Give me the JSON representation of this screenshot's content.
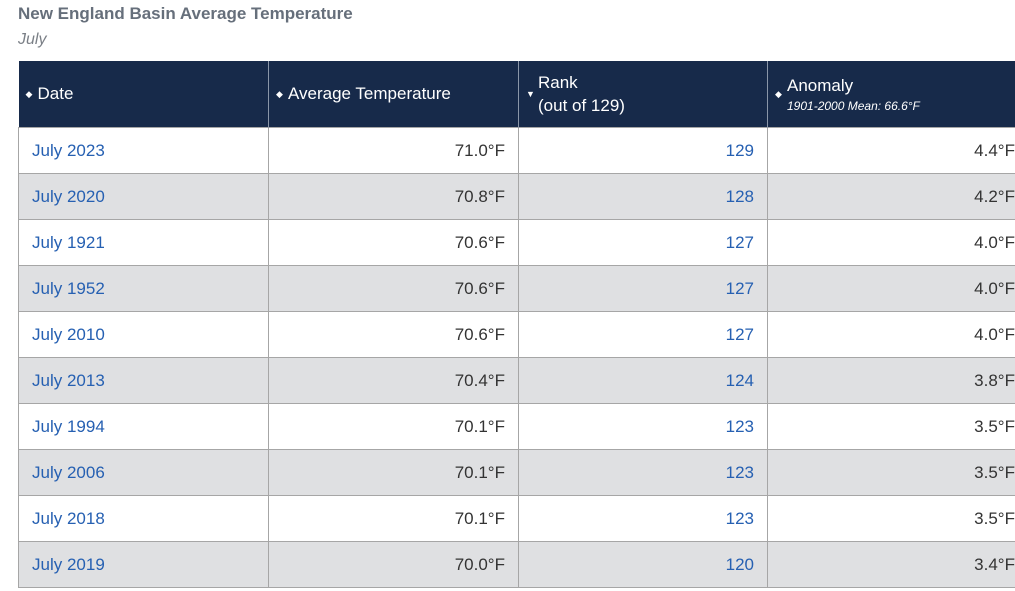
{
  "title": "New England Basin Average Temperature",
  "subtitle": "July",
  "columns": {
    "date": "Date",
    "avg_temp": "Average Temperature",
    "rank_line1": "Rank",
    "rank_line2": "(out of 129)",
    "anomaly": "Anomaly",
    "anomaly_note": "1901-2000 Mean: 66.6°F"
  },
  "sort_icons": {
    "date": "unsorted-arrows-icon",
    "avg_temp": "unsorted-arrows-icon",
    "rank": "sort-descending-icon",
    "anomaly": "unsorted-arrows-icon"
  },
  "rows": [
    {
      "date": "July 2023",
      "temp": "71.0°F",
      "rank": "129",
      "anomaly": "4.4°F"
    },
    {
      "date": "July 2020",
      "temp": "70.8°F",
      "rank": "128",
      "anomaly": "4.2°F"
    },
    {
      "date": "July 1921",
      "temp": "70.6°F",
      "rank": "127",
      "anomaly": "4.0°F"
    },
    {
      "date": "July 1952",
      "temp": "70.6°F",
      "rank": "127",
      "anomaly": "4.0°F"
    },
    {
      "date": "July 2010",
      "temp": "70.6°F",
      "rank": "127",
      "anomaly": "4.0°F"
    },
    {
      "date": "July 2013",
      "temp": "70.4°F",
      "rank": "124",
      "anomaly": "3.8°F"
    },
    {
      "date": "July 1994",
      "temp": "70.1°F",
      "rank": "123",
      "anomaly": "3.5°F"
    },
    {
      "date": "July 2006",
      "temp": "70.1°F",
      "rank": "123",
      "anomaly": "3.5°F"
    },
    {
      "date": "July 2018",
      "temp": "70.1°F",
      "rank": "123",
      "anomaly": "3.5°F"
    },
    {
      "date": "July 2019",
      "temp": "70.0°F",
      "rank": "120",
      "anomaly": "3.4°F"
    }
  ],
  "colors": {
    "header_bg": "#172a4a",
    "link": "#2660b2",
    "stripe": "#dfe0e2"
  }
}
